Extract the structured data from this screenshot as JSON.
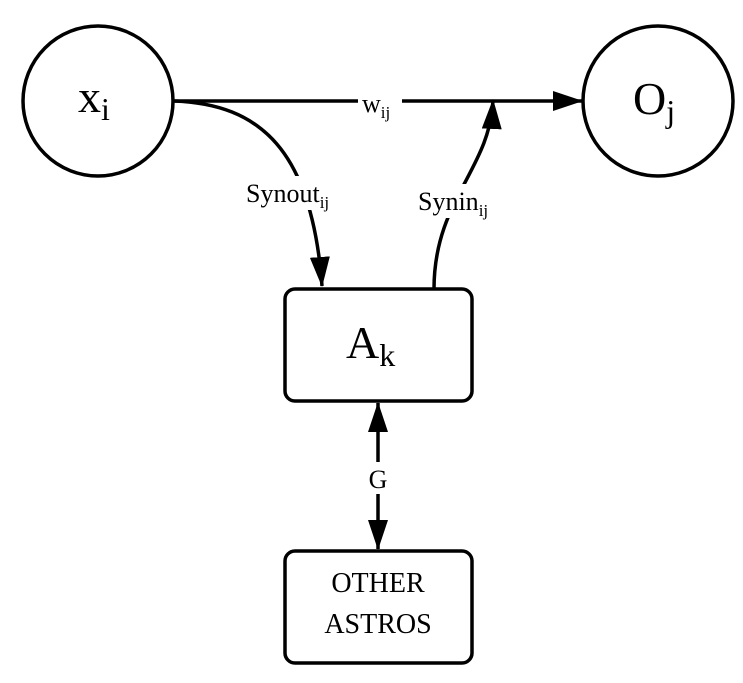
{
  "diagram": {
    "nodes": {
      "x": {
        "symbol": "x",
        "subscript": "i"
      },
      "o": {
        "symbol": "O",
        "subscript": "j"
      },
      "a": {
        "symbol": "A",
        "subscript": "k"
      },
      "other": {
        "line1": "OTHER",
        "line2": "ASTROS"
      }
    },
    "edges": {
      "w": {
        "symbol": "w",
        "subscript": "ij"
      },
      "synout": {
        "symbol": "Synout",
        "subscript": "ij"
      },
      "synin": {
        "symbol": "Synin",
        "subscript": "ij"
      },
      "g": {
        "symbol": "G"
      }
    },
    "stroke_color": "#000000",
    "fill_color": "#ffffff"
  }
}
